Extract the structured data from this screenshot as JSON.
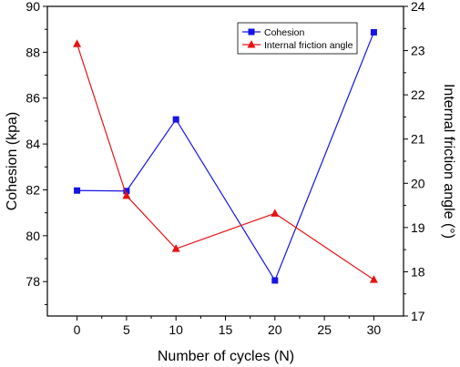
{
  "chart_data": {
    "type": "line",
    "x": [
      0,
      5,
      10,
      20,
      30
    ],
    "xlabel": "Number of cycles (N)",
    "xlim": [
      -3,
      33
    ],
    "xticks": [
      "0",
      "5",
      "10",
      "15",
      "20",
      "25",
      "30"
    ],
    "ylabel_left": "Cohesion (kpa)",
    "ylim_left": [
      76.5,
      90
    ],
    "yticks_left": [
      "78",
      "80",
      "82",
      "84",
      "86",
      "88",
      "90"
    ],
    "ylabel_right": "Internal friction angle (°)",
    "ylim_right": [
      17,
      24
    ],
    "yticks_right": [
      "17",
      "18",
      "19",
      "20",
      "21",
      "22",
      "23",
      "24"
    ],
    "grid": false,
    "legend_position": "top-right",
    "series": [
      {
        "name": "Cohesion",
        "axis": "left",
        "color": "#1414e6",
        "marker": "square",
        "values": [
          81.97,
          81.95,
          85.07,
          78.05,
          88.87
        ]
      },
      {
        "name": "Internal friction angle",
        "axis": "right",
        "color": "#e61414",
        "marker": "triangle",
        "values": [
          23.15,
          19.72,
          18.52,
          19.32,
          17.82
        ]
      }
    ]
  }
}
